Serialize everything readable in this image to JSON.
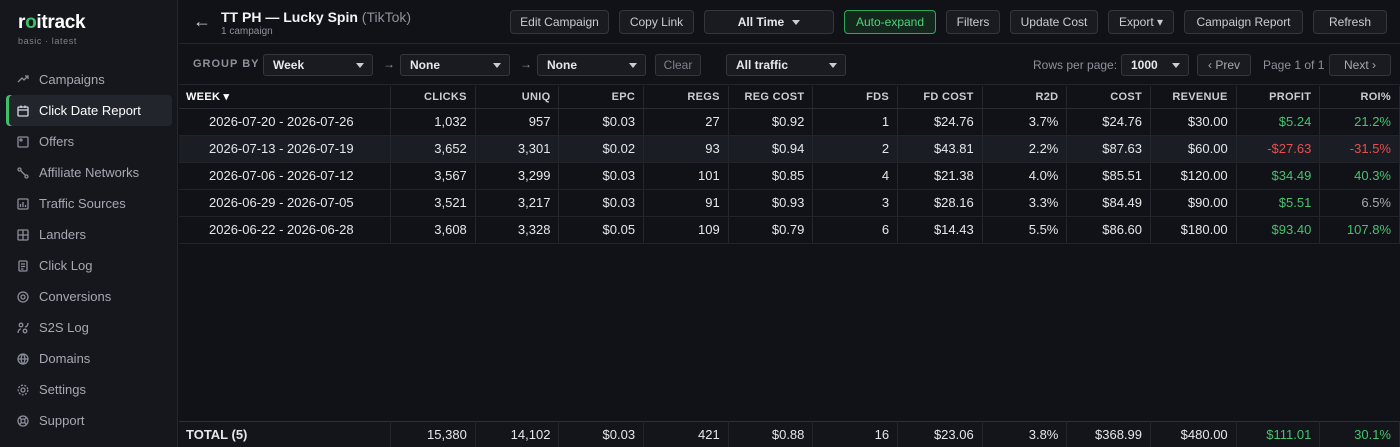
{
  "app": {
    "logo_prefix": "r",
    "logo_o": "o",
    "logo_suffix": "itrack",
    "subtitle": "basic · latest"
  },
  "sidebar": {
    "items": [
      {
        "label": "Campaigns",
        "icon": "campaigns-icon"
      },
      {
        "label": "Click Date Report",
        "icon": "calendar-icon",
        "active": true
      },
      {
        "label": "Offers",
        "icon": "offers-icon"
      },
      {
        "label": "Affiliate Networks",
        "icon": "network-icon"
      },
      {
        "label": "Traffic Sources",
        "icon": "traffic-sources-icon"
      },
      {
        "label": "Landers",
        "icon": "landers-icon"
      },
      {
        "label": "Click Log",
        "icon": "click-log-icon"
      },
      {
        "label": "Conversions",
        "icon": "conversions-icon"
      },
      {
        "label": "S2S Log",
        "icon": "s2s-log-icon"
      },
      {
        "label": "Domains",
        "icon": "globe-icon"
      },
      {
        "label": "Settings",
        "icon": "gear-icon"
      },
      {
        "label": "Support",
        "icon": "support-icon"
      }
    ]
  },
  "header": {
    "back_glyph": "←",
    "title": "TT PH — Lucky Spin",
    "source": "(TikTok)",
    "subtitle": "1 campaign",
    "buttons": {
      "edit": "Edit Campaign",
      "copy": "Copy Link",
      "time": "All Time",
      "autoexpand": "Auto-expand",
      "filters": "Filters",
      "update_cost": "Update Cost",
      "export": "Export ▾",
      "report": "Campaign Report",
      "refresh": "Refresh"
    }
  },
  "filters": {
    "group_by_label": "GROUP BY",
    "group1": "Week",
    "group2": "None",
    "group3": "None",
    "clear": "Clear",
    "traffic": "All traffic",
    "rows_per_page_label": "Rows per page:",
    "rows_per_page": "1000",
    "prev": "‹ Prev",
    "page_info": "Page 1 of 1",
    "next": "Next ›"
  },
  "table": {
    "columns": [
      "WEEK ▾",
      "CLICKS",
      "UNIQ",
      "EPC",
      "REGS",
      "REG COST",
      "FDS",
      "FD COST",
      "R2D",
      "COST",
      "REVENUE",
      "PROFIT",
      "ROI%"
    ],
    "rows": [
      {
        "week": "2026-07-20 - 2026-07-26",
        "clicks": "1,032",
        "uniq": "957",
        "epc": "$0.03",
        "regs": "27",
        "reg_cost": "$0.92",
        "fds": "1",
        "fd_cost": "$24.76",
        "r2d": "3.7%",
        "cost": "$24.76",
        "revenue": "$30.00",
        "profit": "$5.24",
        "roi": "21.2%",
        "profit_class": "pos",
        "roi_class": "pos"
      },
      {
        "week": "2026-07-13 - 2026-07-19",
        "clicks": "3,652",
        "uniq": "3,301",
        "epc": "$0.02",
        "regs": "93",
        "reg_cost": "$0.94",
        "fds": "2",
        "fd_cost": "$43.81",
        "r2d": "2.2%",
        "cost": "$87.63",
        "revenue": "$60.00",
        "profit": "-$27.63",
        "roi": "-31.5%",
        "profit_class": "neg",
        "roi_class": "neg"
      },
      {
        "week": "2026-07-06 - 2026-07-12",
        "clicks": "3,567",
        "uniq": "3,299",
        "epc": "$0.03",
        "regs": "101",
        "reg_cost": "$0.85",
        "fds": "4",
        "fd_cost": "$21.38",
        "r2d": "4.0%",
        "cost": "$85.51",
        "revenue": "$120.00",
        "profit": "$34.49",
        "roi": "40.3%",
        "profit_class": "pos",
        "roi_class": "pos"
      },
      {
        "week": "2026-06-29 - 2026-07-05",
        "clicks": "3,521",
        "uniq": "3,217",
        "epc": "$0.03",
        "regs": "91",
        "reg_cost": "$0.93",
        "fds": "3",
        "fd_cost": "$28.16",
        "r2d": "3.3%",
        "cost": "$84.49",
        "revenue": "$90.00",
        "profit": "$5.51",
        "roi": "6.5%",
        "profit_class": "pos",
        "roi_class": "neutral"
      },
      {
        "week": "2026-06-22 - 2026-06-28",
        "clicks": "3,608",
        "uniq": "3,328",
        "epc": "$0.05",
        "regs": "109",
        "reg_cost": "$0.79",
        "fds": "6",
        "fd_cost": "$14.43",
        "r2d": "5.5%",
        "cost": "$86.60",
        "revenue": "$180.00",
        "profit": "$93.40",
        "roi": "107.8%",
        "profit_class": "pos",
        "roi_class": "pos"
      }
    ],
    "total": {
      "week": "TOTAL (5)",
      "clicks": "15,380",
      "uniq": "14,102",
      "epc": "$0.03",
      "regs": "421",
      "reg_cost": "$0.88",
      "fds": "16",
      "fd_cost": "$23.06",
      "r2d": "3.8%",
      "cost": "$368.99",
      "revenue": "$480.00",
      "profit": "$111.01",
      "roi": "30.1%"
    }
  },
  "colors": {
    "accent": "#3ec06a",
    "negative": "#e0514f",
    "background": "#111217"
  }
}
